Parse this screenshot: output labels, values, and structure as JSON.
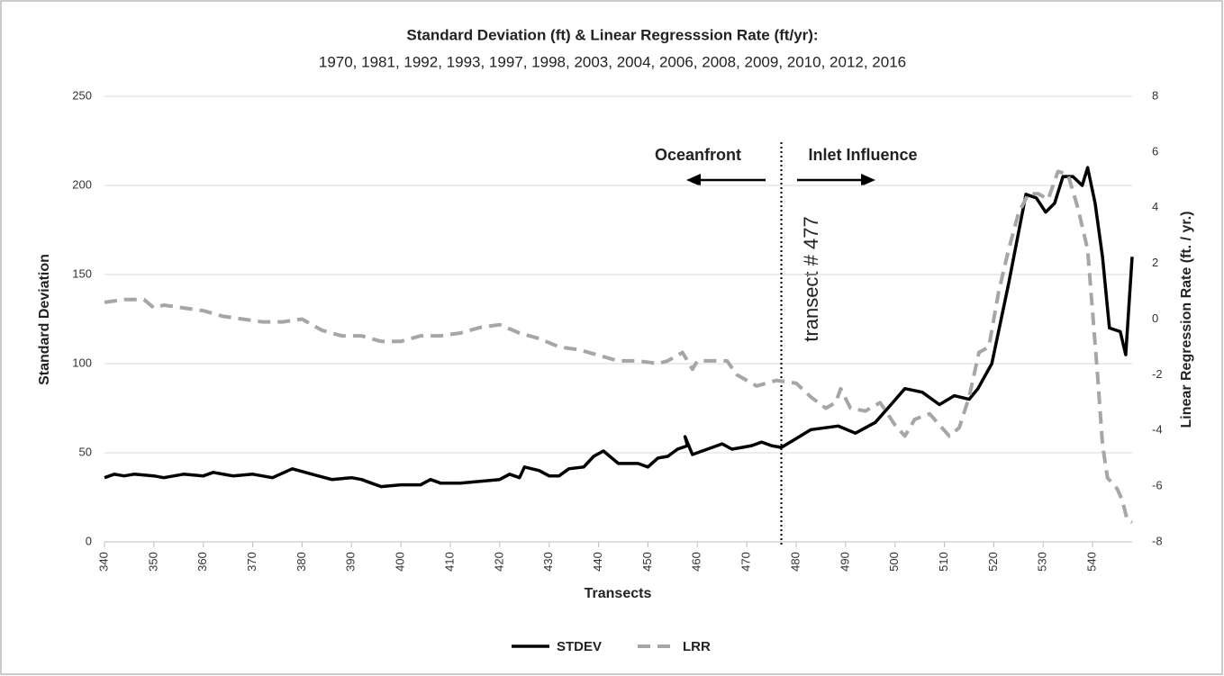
{
  "chart_data": {
    "type": "line",
    "title": "Standard Deviation (ft) & Linear Regresssion Rate (ft/yr):",
    "subtitle": "1970, 1981, 1992, 1993, 1997, 1998, 2003, 2004, 2006, 2008, 2009, 2010, 2012, 2016",
    "x_label": "Transects",
    "y_label": "Standard Deviation",
    "y2_label": "Linear Regression Rate (ft. / yr.)",
    "xlim": [
      340,
      548
    ],
    "xticks": [
      340,
      350,
      360,
      370,
      380,
      390,
      400,
      410,
      420,
      430,
      440,
      450,
      460,
      470,
      480,
      490,
      500,
      510,
      520,
      530,
      540
    ],
    "ylim": [
      0,
      250
    ],
    "yticks": [
      0,
      50,
      100,
      150,
      200,
      250
    ],
    "y2lim": [
      -8,
      8
    ],
    "y2ticks": [
      -8,
      -6,
      -4,
      -2,
      0,
      2,
      4,
      6,
      8
    ],
    "grid": true,
    "legend": "bottom",
    "vline": 477,
    "annotations": [
      "Oceanfront",
      "Inlet Influence",
      "transect # 477"
    ],
    "series": [
      {
        "name": "STDEV",
        "color": "#000000",
        "style": "solid",
        "x": [
          340,
          342,
          344,
          346,
          350,
          352,
          356,
          360,
          362,
          366,
          370,
          374,
          378,
          382,
          386,
          390,
          392,
          394,
          396,
          400,
          404,
          406,
          408,
          412,
          416,
          420,
          422,
          424,
          425,
          428,
          430,
          432,
          434,
          437,
          439,
          441,
          444,
          448,
          450,
          452,
          454,
          456,
          458,
          457.5,
          459,
          461,
          463,
          465,
          467,
          469,
          471,
          473,
          475,
          477,
          480,
          483,
          488.5,
          492,
          496,
          499.5,
          502,
          505.5,
          509,
          512,
          515,
          516.8,
          519.6,
          523,
          526.5,
          528.6,
          530.5,
          532.3,
          534,
          536,
          537.9,
          539,
          540.5,
          542,
          543.4,
          545.6,
          546.7,
          548
        ],
        "values": [
          36,
          38,
          37,
          38,
          37,
          36,
          38,
          37,
          39,
          37,
          38,
          36,
          41,
          38,
          35,
          36,
          35,
          33,
          31,
          32,
          32,
          35,
          33,
          33,
          34,
          35,
          38,
          36,
          42,
          40,
          37,
          37,
          41,
          42,
          48,
          51,
          44,
          44,
          42,
          47,
          48,
          52,
          54,
          59,
          49,
          51,
          53,
          55,
          52,
          53,
          54,
          56,
          54,
          53,
          58,
          63,
          65,
          61,
          67,
          78,
          86,
          84,
          77,
          82,
          80,
          86,
          100,
          145,
          195,
          193,
          185,
          190,
          205,
          205,
          200,
          210,
          190,
          160,
          120,
          118,
          105,
          160
        ]
      },
      {
        "name": "LRR",
        "color": "#a6a6a6",
        "style": "dashed",
        "axis": "y2",
        "x": [
          340,
          344,
          348,
          350,
          352,
          356,
          360,
          364,
          368,
          372,
          376,
          380,
          384,
          388,
          392,
          396,
          400,
          404,
          408,
          412,
          416,
          420,
          424,
          428,
          432,
          436,
          440,
          444,
          448,
          452,
          454,
          457,
          459,
          460,
          462,
          466,
          468,
          472,
          476,
          480,
          483,
          486,
          488,
          489,
          491,
          494,
          497,
          500,
          502,
          504,
          507,
          509,
          511,
          513,
          515,
          517,
          519,
          521,
          523,
          525,
          527,
          529,
          531,
          533,
          535,
          537,
          539,
          541,
          542,
          543,
          545,
          546,
          547,
          548
        ],
        "values": [
          0.6,
          0.7,
          0.7,
          0.4,
          0.5,
          0.4,
          0.3,
          0.1,
          0.0,
          -0.1,
          -0.1,
          0.0,
          -0.4,
          -0.6,
          -0.6,
          -0.8,
          -0.8,
          -0.6,
          -0.6,
          -0.5,
          -0.3,
          -0.2,
          -0.5,
          -0.7,
          -1.0,
          -1.1,
          -1.3,
          -1.5,
          -1.5,
          -1.6,
          -1.5,
          -1.2,
          -1.8,
          -1.5,
          -1.5,
          -1.5,
          -2.0,
          -2.4,
          -2.2,
          -2.3,
          -2.8,
          -3.2,
          -3.0,
          -2.5,
          -3.2,
          -3.3,
          -3.0,
          -3.8,
          -4.2,
          -3.6,
          -3.4,
          -3.8,
          -4.2,
          -3.9,
          -2.8,
          -1.2,
          -1.0,
          1.0,
          2.5,
          3.8,
          4.5,
          4.5,
          4.3,
          5.3,
          5.2,
          4.0,
          2.5,
          -2.0,
          -4.5,
          -5.7,
          -6.1,
          -6.5,
          -7.2,
          -7.3
        ]
      }
    ]
  }
}
